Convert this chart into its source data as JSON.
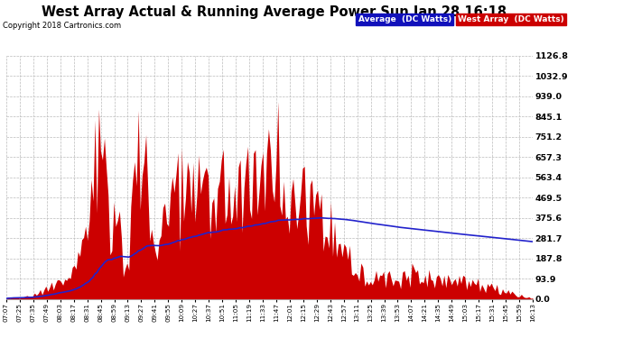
{
  "title": "West Array Actual & Running Average Power Sun Jan 28 16:18",
  "copyright": "Copyright 2018 Cartronics.com",
  "legend_avg": "Average  (DC Watts)",
  "legend_west": "West Array  (DC Watts)",
  "bg_color": "#ffffff",
  "fill_color": "#cc0000",
  "line_color": "#2222cc",
  "grid_color": "#bbbbbb",
  "yticks": [
    0.0,
    93.9,
    187.8,
    281.7,
    375.6,
    469.5,
    563.4,
    657.3,
    751.2,
    845.1,
    939.0,
    1032.9,
    1126.8
  ],
  "ymax": 1126.8,
  "xticklabels": [
    "07:07",
    "07:25",
    "07:35",
    "07:49",
    "08:03",
    "08:17",
    "08:31",
    "08:45",
    "08:59",
    "09:13",
    "09:27",
    "09:41",
    "09:55",
    "10:09",
    "10:27",
    "10:37",
    "10:51",
    "11:05",
    "11:19",
    "11:33",
    "11:47",
    "12:01",
    "12:15",
    "12:29",
    "12:43",
    "12:57",
    "13:11",
    "13:25",
    "13:39",
    "13:53",
    "14:07",
    "14:21",
    "14:35",
    "14:49",
    "15:03",
    "15:17",
    "15:31",
    "15:45",
    "15:59",
    "16:13"
  ]
}
